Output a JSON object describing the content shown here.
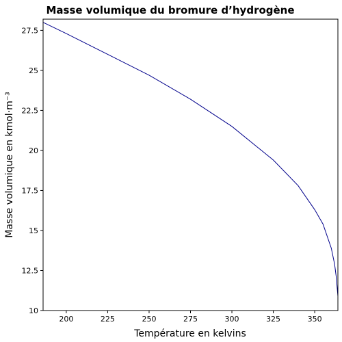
{
  "chart_data": {
    "type": "line",
    "title": "Masse volumique du bromure d’hydrogène",
    "xlabel": "Température en kelvins",
    "ylabel": "Masse volumique en kmol·m⁻³",
    "xlim": [
      186,
      364
    ],
    "ylim": [
      10,
      28.2
    ],
    "xticks": [
      "200",
      "225",
      "250",
      "275",
      "300",
      "325",
      "350"
    ],
    "yticks": [
      "10",
      "12.5",
      "15",
      "17.5",
      "20",
      "22.5",
      "25",
      "27.5"
    ],
    "grid": false,
    "series": [
      {
        "color": "#00008b",
        "x": [
          186,
          200,
          225,
          250,
          275,
          300,
          325,
          340,
          350,
          355,
          360,
          362,
          363,
          364
        ],
        "y": [
          28.0,
          27.3,
          26.0,
          24.7,
          23.2,
          21.5,
          19.4,
          17.8,
          16.3,
          15.4,
          13.9,
          12.9,
          12.1,
          10.9
        ]
      }
    ]
  }
}
